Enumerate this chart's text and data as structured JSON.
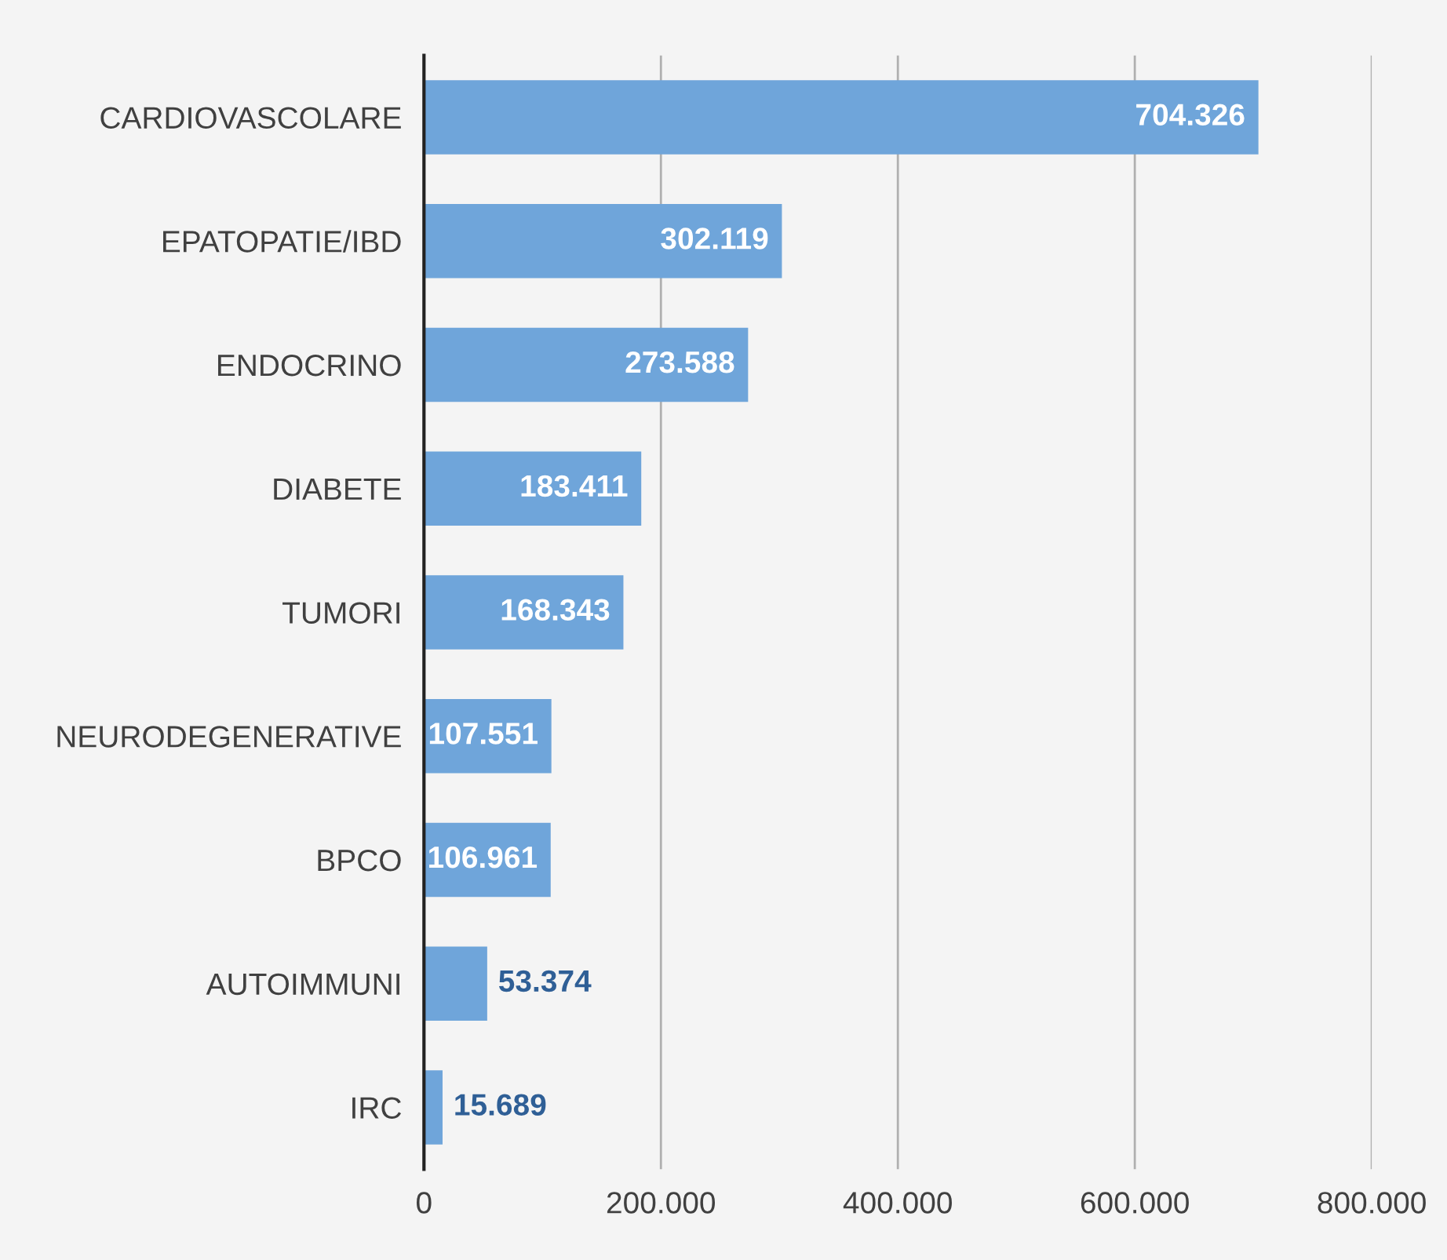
{
  "chart_data": {
    "type": "bar",
    "orientation": "horizontal",
    "categories": [
      "CARDIOVASCOLARE",
      "EPATOPATIE/IBD",
      "ENDOCRINO",
      "DIABETE",
      "TUMORI",
      "NEURODEGENERATIVE",
      "BPCO",
      "AUTOIMMUNI",
      "IRC"
    ],
    "values": [
      704326,
      302119,
      273588,
      183411,
      168343,
      107551,
      106961,
      53374,
      15689
    ],
    "value_labels": [
      "704.326",
      "302.119",
      "273.588",
      "183.411",
      "168.343",
      "107.551",
      "106.961",
      "53.374",
      "15.689"
    ],
    "color": "#6fa5da",
    "xlim": [
      0,
      800000
    ],
    "xticks": [
      0,
      {
        "value": 200000,
        "label": "200.000"
      },
      {
        "value": 400000,
        "label": "400.000"
      },
      {
        "value": 600000,
        "label": "600.000"
      },
      {
        "value": 800000,
        "label": "800.000"
      }
    ],
    "grid": "x",
    "legend": false
  }
}
